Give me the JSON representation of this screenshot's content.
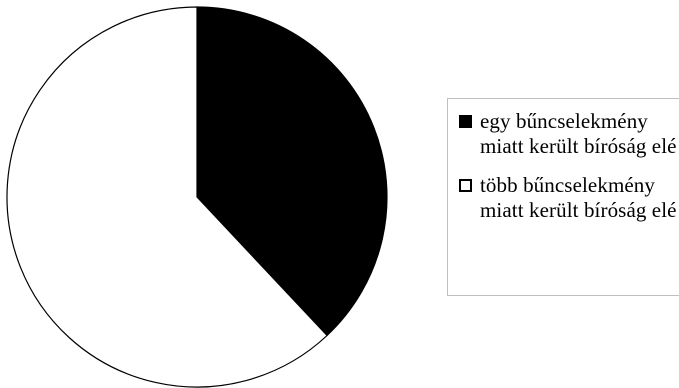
{
  "chart_data": {
    "type": "pie",
    "title": "",
    "legend_position": "right",
    "slices": [
      {
        "label": "egy bűncselekmény miatt került bíróság elé",
        "value": 38,
        "color": "#000000"
      },
      {
        "label": "több bűncselekmény miatt került bíróság elé",
        "value": 62,
        "color": "#ffffff"
      }
    ]
  }
}
